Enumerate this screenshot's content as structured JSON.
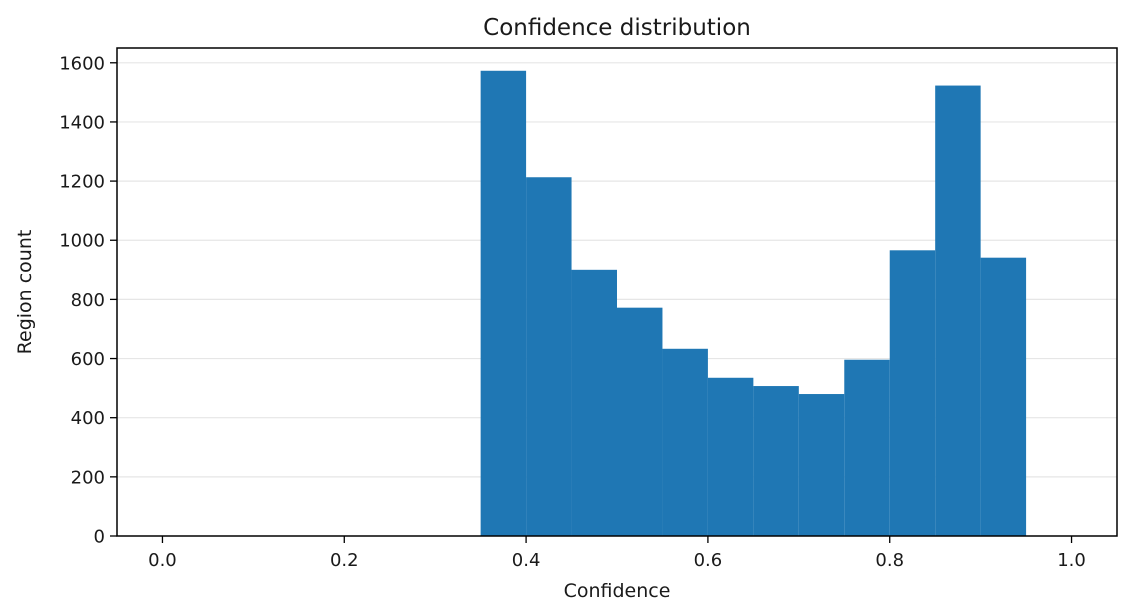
{
  "chart_data": {
    "type": "bar",
    "title": "Confidence distribution",
    "xlabel": "Confidence",
    "ylabel": "Region count",
    "xlim": [
      -0.05,
      1.05
    ],
    "ylim": [
      0,
      1650
    ],
    "xticks": [
      0.0,
      0.2,
      0.4,
      0.6,
      0.8,
      1.0
    ],
    "xtick_labels": [
      "0.0",
      "0.2",
      "0.4",
      "0.6",
      "0.8",
      "1.0"
    ],
    "yticks": [
      0,
      200,
      400,
      600,
      800,
      1000,
      1200,
      1400,
      1600
    ],
    "ytick_labels": [
      "0",
      "200",
      "400",
      "600",
      "800",
      "1000",
      "1200",
      "1400",
      "1600"
    ],
    "grid": "y",
    "bar_color": "#1f77b4",
    "bins": [
      {
        "x0": 0.35,
        "x1": 0.4,
        "value": 1573
      },
      {
        "x0": 0.4,
        "x1": 0.45,
        "value": 1213
      },
      {
        "x0": 0.45,
        "x1": 0.5,
        "value": 900
      },
      {
        "x0": 0.5,
        "x1": 0.55,
        "value": 772
      },
      {
        "x0": 0.55,
        "x1": 0.6,
        "value": 633
      },
      {
        "x0": 0.6,
        "x1": 0.65,
        "value": 535
      },
      {
        "x0": 0.65,
        "x1": 0.7,
        "value": 507
      },
      {
        "x0": 0.7,
        "x1": 0.75,
        "value": 480
      },
      {
        "x0": 0.75,
        "x1": 0.8,
        "value": 596
      },
      {
        "x0": 0.8,
        "x1": 0.85,
        "value": 966
      },
      {
        "x0": 0.85,
        "x1": 0.9,
        "value": 1523
      },
      {
        "x0": 0.9,
        "x1": 0.95,
        "value": 941
      }
    ]
  }
}
